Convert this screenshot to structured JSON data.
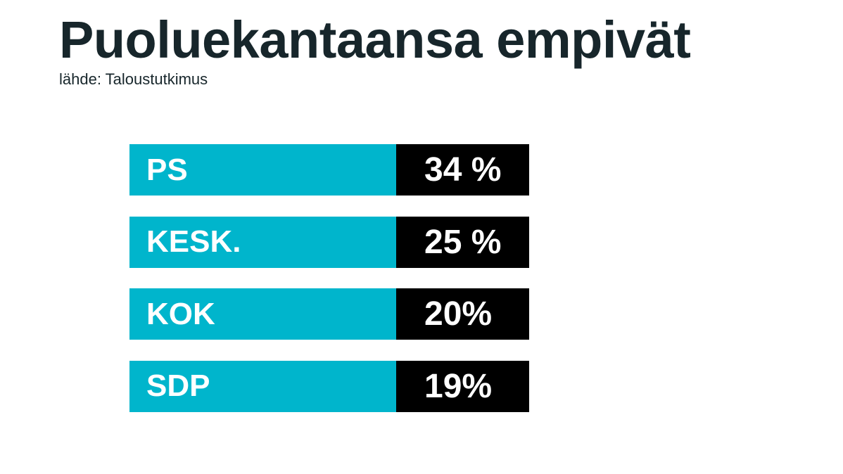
{
  "chart_data": {
    "type": "table",
    "title": "Puoluekantaansa empivät",
    "subtitle": "lähde: Taloustutkimus",
    "categories": [
      "PS",
      "KESK.",
      "KOK",
      "SDP"
    ],
    "values": [
      34,
      25,
      20,
      19
    ],
    "value_labels": [
      "34 %",
      "25 %",
      "20%",
      "19%"
    ],
    "unit": "%",
    "grid": false,
    "legend": "none"
  },
  "colors": {
    "label_cell": "#00b5cc",
    "value_cell": "#000000",
    "title_text": "#17262b",
    "cell_text": "#ffffff"
  }
}
